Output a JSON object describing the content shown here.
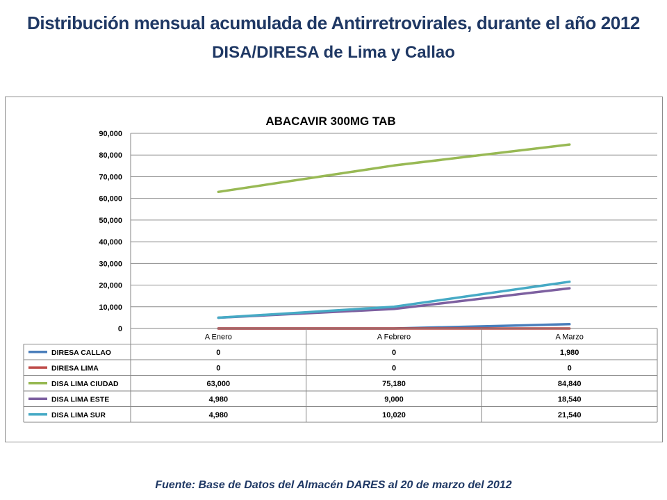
{
  "header": {
    "title": "Distribución mensual acumulada de Antirretrovirales, durante el año 2012",
    "subtitle": "DISA/DIRESA de Lima y Callao"
  },
  "footer": {
    "source": "Fuente: Base de Datos del Almacén DARES al 20 de marzo del 2012"
  },
  "chart_data": {
    "type": "line",
    "title": "ABACAVIR 300MG TAB",
    "xlabel": "",
    "ylabel": "",
    "categories": [
      "A Enero",
      "A Febrero",
      "A Marzo"
    ],
    "ylim": [
      0,
      90000
    ],
    "yticks": [
      0,
      10000,
      20000,
      30000,
      40000,
      50000,
      60000,
      70000,
      80000,
      90000
    ],
    "ytick_labels": [
      "0",
      "10,000",
      "20,000",
      "30,000",
      "40,000",
      "50,000",
      "60,000",
      "70,000",
      "80,000",
      "90,000"
    ],
    "grid": true,
    "legend": "data-table",
    "series": [
      {
        "name": "DIRESA CALLAO",
        "color": "#4a7ebb",
        "values": [
          0,
          0,
          1980
        ],
        "labels": [
          "0",
          "0",
          "1,980"
        ]
      },
      {
        "name": "DIRESA LIMA",
        "color": "#be4b48",
        "values": [
          0,
          0,
          0
        ],
        "labels": [
          "0",
          "0",
          "0"
        ]
      },
      {
        "name": "DISA LIMA CIUDAD",
        "color": "#98b954",
        "values": [
          63000,
          75180,
          84840
        ],
        "labels": [
          "63,000",
          "75,180",
          "84,840"
        ]
      },
      {
        "name": "DISA LIMA ESTE",
        "color": "#7d60a0",
        "values": [
          4980,
          9000,
          18540
        ],
        "labels": [
          "4,980",
          "9,000",
          "18,540"
        ]
      },
      {
        "name": "DISA LIMA SUR",
        "color": "#46aac5",
        "values": [
          4980,
          10020,
          21540
        ],
        "labels": [
          "4,980",
          "10,020",
          "21,540"
        ]
      }
    ]
  }
}
